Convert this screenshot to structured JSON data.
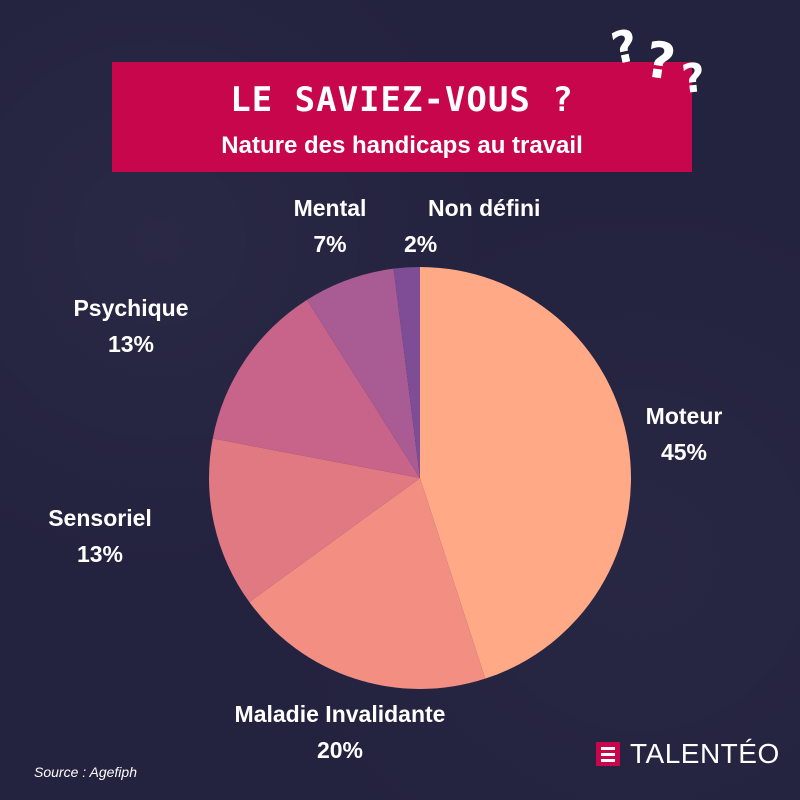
{
  "banner": {
    "title": "LE SAVIEZ-VOUS ?",
    "subtitle": "Nature des handicaps au travail"
  },
  "decoration": {
    "icon": "question-marks-icon",
    "glyphs": [
      "?",
      "?",
      "?"
    ]
  },
  "chart_data": {
    "type": "pie",
    "title": "Nature des handicaps au travail",
    "slices": [
      {
        "label": "Moteur",
        "value": 45,
        "display": "45%",
        "color": "#ffa987"
      },
      {
        "label": "Maladie Invalidante",
        "value": 20,
        "display": "20%",
        "color": "#f38f82"
      },
      {
        "label": "Sensoriel",
        "value": 13,
        "display": "13%",
        "color": "#e17983"
      },
      {
        "label": "Psychique",
        "value": 13,
        "display": "13%",
        "color": "#c8638a"
      },
      {
        "label": "Mental",
        "value": 7,
        "display": "7%",
        "color": "#a95b94"
      },
      {
        "label": "Non défini",
        "value": 2,
        "display": "2%",
        "color": "#7e4d95"
      }
    ]
  },
  "source": "Source : Agefiph",
  "logo": {
    "text": "TALENTÉO",
    "icon": "talenteo-logo-icon",
    "color": "#c8064b"
  }
}
